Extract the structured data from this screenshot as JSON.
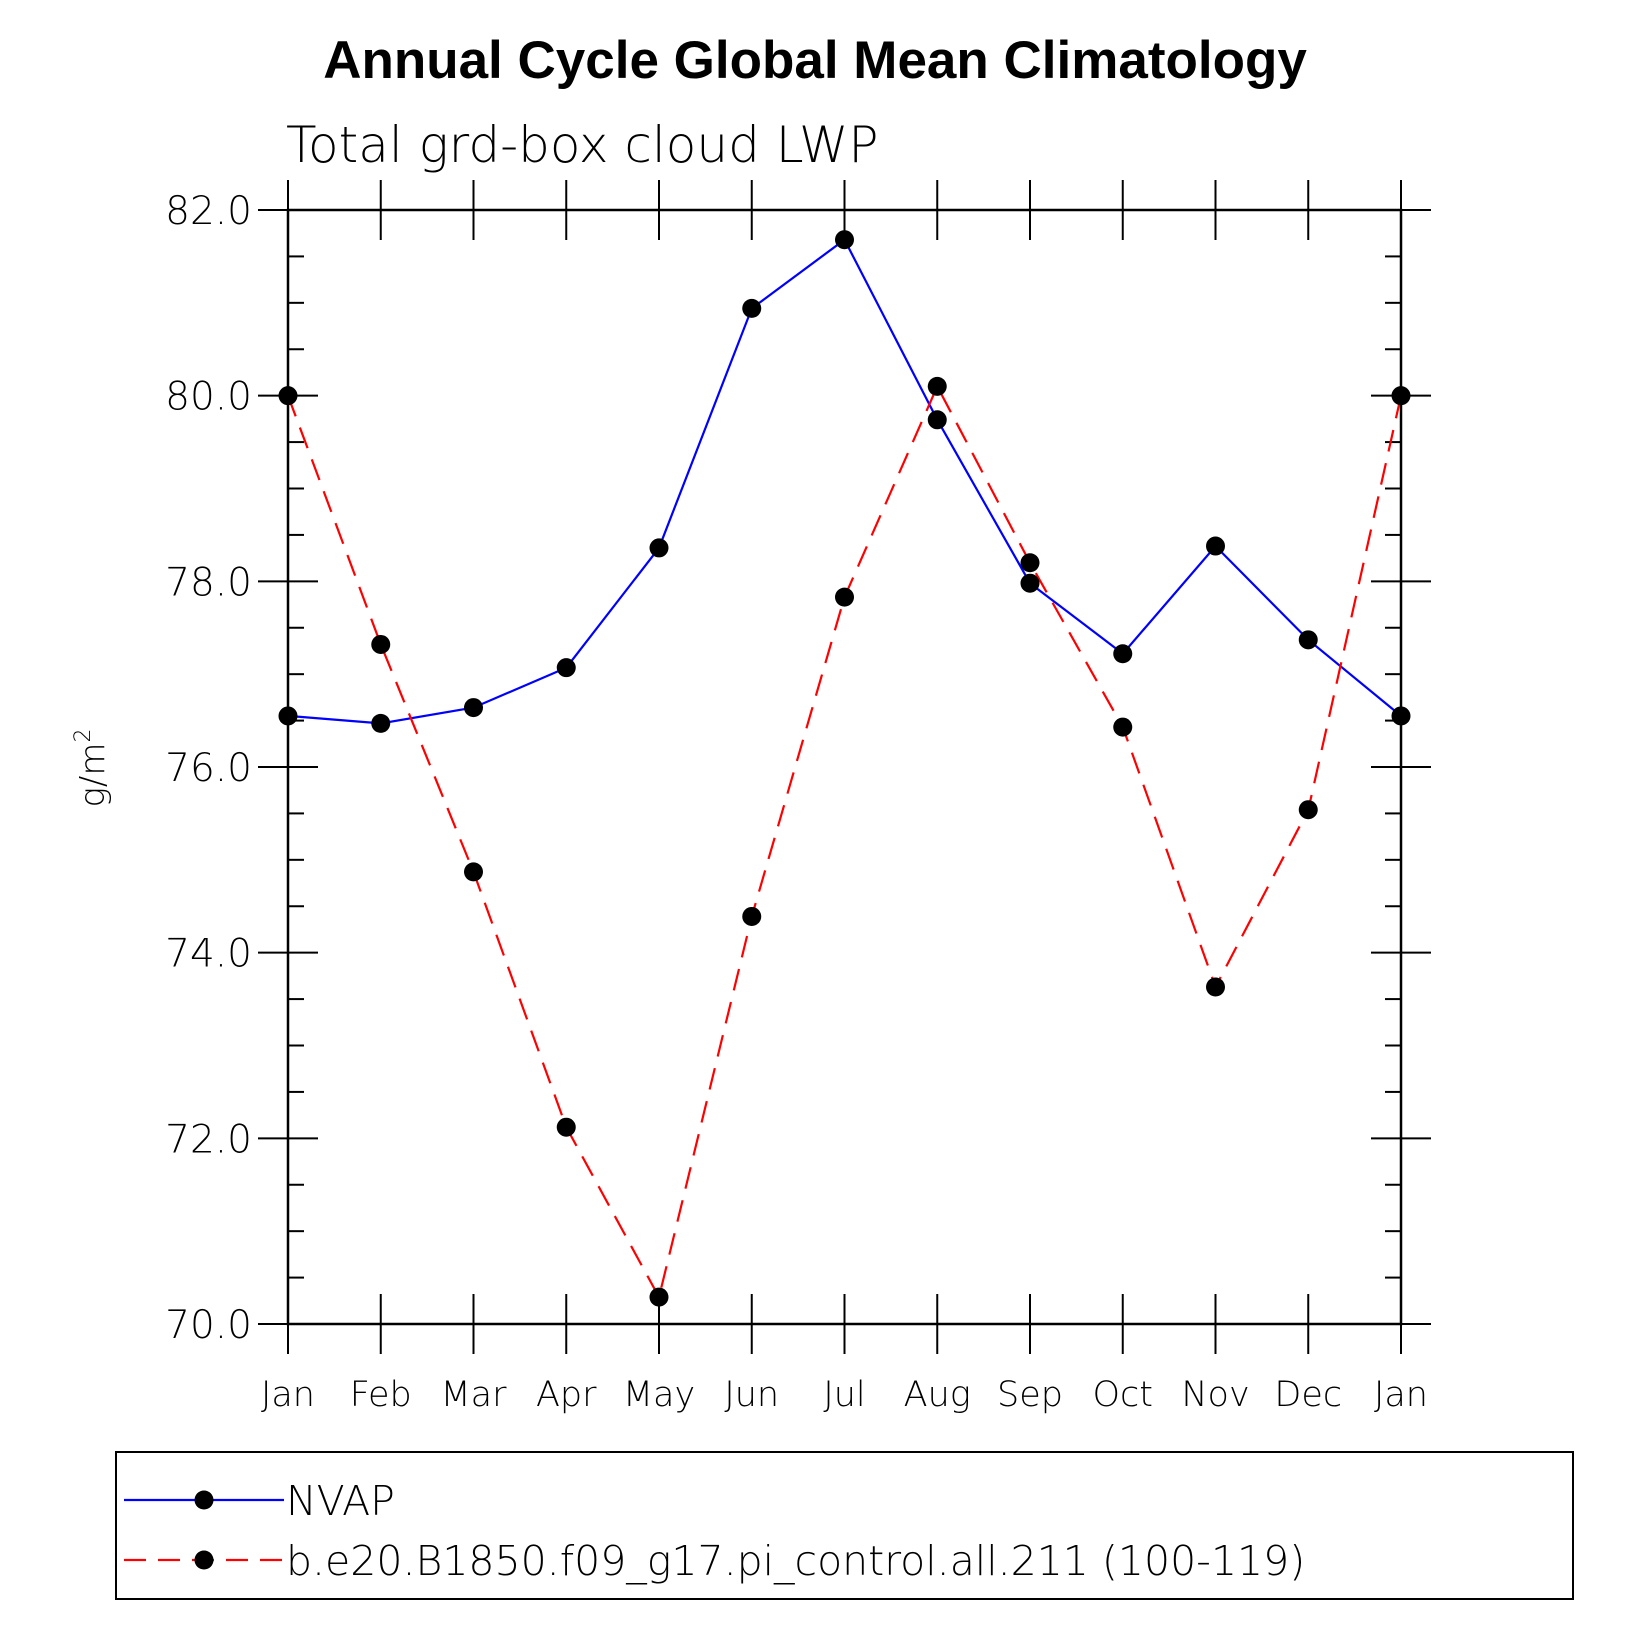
{
  "chart_data": {
    "type": "line",
    "title": "Annual Cycle Global Mean Climatology",
    "subtitle": "Total grd-box cloud LWP",
    "ylabel": "g/m",
    "ylabel_superscript": "2",
    "xlabel": "",
    "ylim": [
      70,
      82
    ],
    "yticks": [
      "70.0",
      "72.0",
      "74.0",
      "76.0",
      "78.0",
      "80.0",
      "82.0"
    ],
    "categories": [
      "Jan",
      "Feb",
      "Mar",
      "Apr",
      "May",
      "Jun",
      "Jul",
      "Aug",
      "Sep",
      "Oct",
      "Nov",
      "Dec",
      "Jan"
    ],
    "series": [
      {
        "name": "NVAP",
        "color": "#0000ff",
        "style": "solid",
        "marker": "dot",
        "values": [
          76.55,
          76.47,
          76.64,
          77.07,
          78.36,
          80.94,
          81.68,
          79.74,
          77.98,
          77.22,
          78.38,
          77.37,
          76.55
        ]
      },
      {
        "name": "b.e20.B1850.f09_g17.pi_control.all.211 (100-119)",
        "color": "#ff0000",
        "style": "dashed",
        "marker": "dot",
        "values": [
          80.0,
          77.32,
          74.87,
          72.12,
          70.29,
          74.39,
          77.83,
          80.1,
          78.2,
          76.43,
          73.63,
          75.54,
          80.0
        ]
      }
    ],
    "legend_position": "bottom"
  }
}
